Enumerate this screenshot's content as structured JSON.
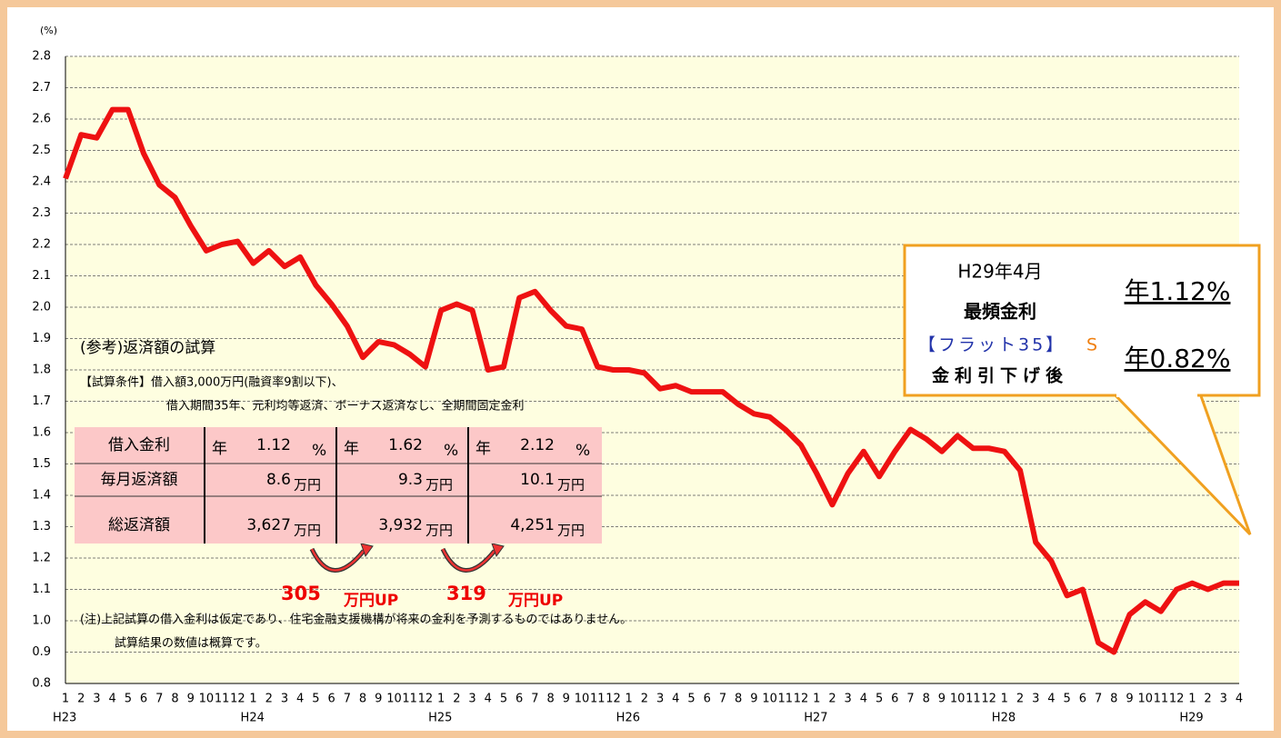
{
  "chart_data": {
    "type": "line",
    "y_label": "(%)",
    "categories": [
      "1",
      "2",
      "3",
      "4",
      "5",
      "6",
      "7",
      "8",
      "9",
      "10",
      "11",
      "12",
      "1",
      "2",
      "3",
      "4",
      "5",
      "6",
      "7",
      "8",
      "9",
      "10",
      "11",
      "12",
      "1",
      "2",
      "3",
      "4",
      "5",
      "6",
      "7",
      "8",
      "9",
      "10",
      "11",
      "12",
      "1",
      "2",
      "3",
      "4",
      "5",
      "6",
      "7",
      "8",
      "9",
      "10",
      "11",
      "12",
      "1",
      "2",
      "3",
      "4",
      "5",
      "6",
      "7",
      "8",
      "9",
      "10",
      "11",
      "12",
      "1",
      "2",
      "3",
      "4",
      "5",
      "6",
      "7",
      "8",
      "9",
      "10",
      "11",
      "12",
      "1",
      "2",
      "3",
      "4"
    ],
    "years": [
      "H23",
      "H24",
      "H25",
      "H26",
      "H27",
      "H28",
      "H29"
    ],
    "series": [
      {
        "color": "#ee1111",
        "values": [
          2.41,
          2.55,
          2.54,
          2.63,
          2.63,
          2.49,
          2.39,
          2.35,
          2.26,
          2.18,
          2.2,
          2.21,
          2.14,
          2.18,
          2.13,
          2.16,
          2.07,
          2.01,
          1.94,
          1.84,
          1.89,
          1.88,
          1.85,
          1.81,
          1.99,
          2.01,
          1.99,
          1.8,
          1.81,
          2.03,
          2.05,
          1.99,
          1.94,
          1.93,
          1.81,
          1.8,
          1.8,
          1.79,
          1.74,
          1.75,
          1.73,
          1.73,
          1.73,
          1.69,
          1.66,
          1.65,
          1.61,
          1.56,
          1.47,
          1.37,
          1.47,
          1.54,
          1.46,
          1.54,
          1.61,
          1.58,
          1.54,
          1.59,
          1.55,
          1.55,
          1.54,
          1.48,
          1.25,
          1.19,
          1.08,
          1.1,
          0.93,
          0.9,
          1.02,
          1.06,
          1.03,
          1.1,
          1.12,
          1.1,
          1.12,
          1.12
        ]
      }
    ],
    "ylim": [
      0.8,
      2.8
    ],
    "yticks": [
      0.8,
      0.9,
      {
        "value": 1,
        "label": "1.0"
      },
      1.1,
      1.2,
      1.3,
      1.4,
      1.5,
      1.6,
      1.7,
      1.8,
      1.9,
      {
        "value": 2,
        "label": "2.0"
      },
      2.1,
      2.2,
      2.3,
      2.4,
      2.5,
      2.6,
      2.7,
      2.8
    ],
    "grid": true,
    "background": "#fefee0",
    "annotations": {
      "inset_title": "(参考)返済額の試算",
      "conditions": [
        "【試算条件】借入額3,000万円(融資率9割以下)、",
        "借入期間35年、元利均等返済、ボーナス返済なし、全期間固定金利"
      ],
      "table": {
        "rows": [
          {
            "label": "借入金利",
            "cells": [
              [
                "年",
                "1.12",
                "%"
              ],
              [
                "年",
                "1.62",
                "%"
              ],
              [
                "年",
                "2.12",
                "%"
              ]
            ]
          },
          {
            "label": "毎月返済額",
            "cells": [
              [
                "",
                "8.6",
                "万円"
              ],
              [
                "",
                "9.3",
                "万円"
              ],
              [
                "",
                "10.1",
                "万円"
              ]
            ]
          },
          {
            "label": "総返済額",
            "cells": [
              [
                "",
                "3,627",
                "万円"
              ],
              [
                "",
                "3,932",
                "万円"
              ],
              [
                "",
                "4,251",
                "万円"
              ]
            ]
          }
        ]
      },
      "increases": [
        {
          "amount": "305",
          "unit": "万円UP"
        },
        {
          "amount": "319",
          "unit": "万円UP"
        }
      ],
      "notes": [
        "(注)上記試算の借入金利は仮定であり、住宅金融支援機構が将来の金利を予測するものではありません。",
        "試算結果の数値は概算です。"
      ],
      "callout": {
        "date": "H29年4月",
        "label": "最頻金利",
        "rate": "年1.12%",
        "product": "【フラット35】",
        "product_suffix": "S",
        "after": "金利引下げ後",
        "reduced_rate": "年0.82%"
      }
    }
  }
}
